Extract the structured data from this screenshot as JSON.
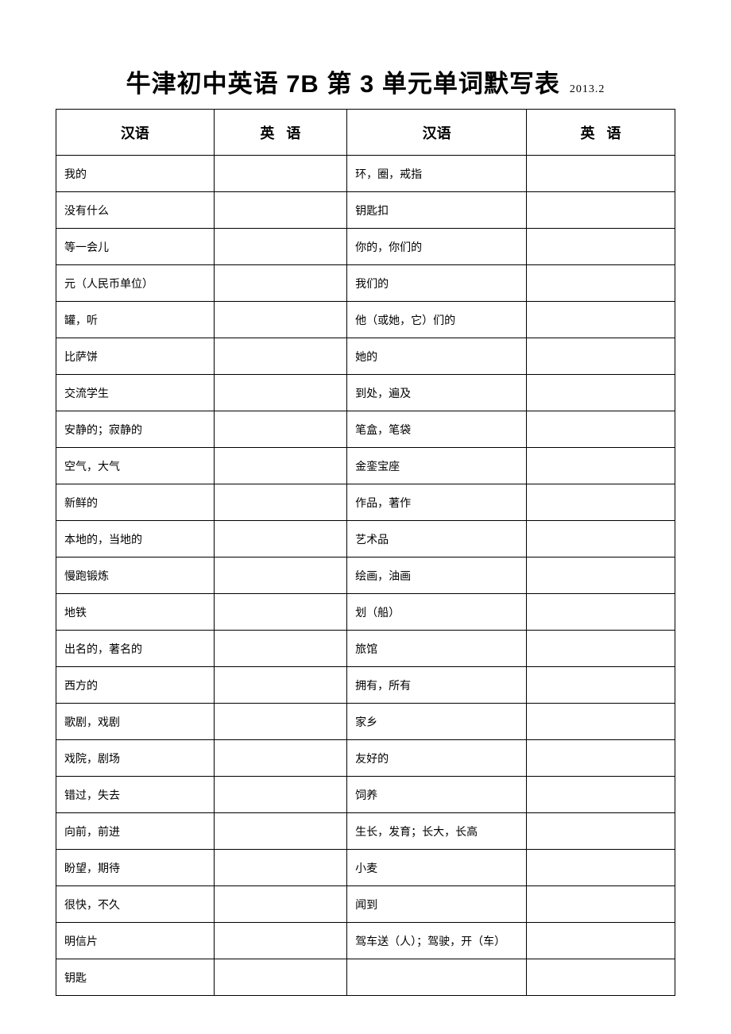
{
  "title": {
    "main": "牛津初中英语 7B 第 3 单元单词默写表",
    "date": "2013.2"
  },
  "headers": {
    "col1": "汉语",
    "col2": "英",
    "col2b": "语",
    "col3": "汉语",
    "col4": "英",
    "col4b": "语"
  },
  "rows": [
    {
      "l": "我的",
      "r": "环，圈，戒指"
    },
    {
      "l": "没有什么",
      "r": "钥匙扣"
    },
    {
      "l": "等一会儿",
      "r": "你的，你们的"
    },
    {
      "l": "元（人民币单位）",
      "r": "我们的"
    },
    {
      "l": "罐，听",
      "r": "他（或她，它）们的"
    },
    {
      "l": "比萨饼",
      "r": "她的"
    },
    {
      "l": "交流学生",
      "r": "到处，遍及"
    },
    {
      "l": "安静的；寂静的",
      "r": "笔盒，笔袋"
    },
    {
      "l": "空气，大气",
      "r": "金銮宝座"
    },
    {
      "l": "新鲜的",
      "r": "作品，著作"
    },
    {
      "l": "本地的，当地的",
      "r": "艺术品"
    },
    {
      "l": "慢跑锻炼",
      "r": "绘画，油画"
    },
    {
      "l": "地铁",
      "r": "划（船）"
    },
    {
      "l": "出名的，著名的",
      "r": "旅馆"
    },
    {
      "l": "西方的",
      "r": "拥有，所有"
    },
    {
      "l": "歌剧，戏剧",
      "r": "家乡"
    },
    {
      "l": "戏院，剧场",
      "r": "友好的"
    },
    {
      "l": "错过，失去",
      "r": "饲养"
    },
    {
      "l": "向前，前进",
      "r": "生长，发育；长大，长高"
    },
    {
      "l": "盼望，期待",
      "r": "小麦"
    },
    {
      "l": "很快，不久",
      "r": "闻到"
    },
    {
      "l": "明信片",
      "r": "驾车送（人）；驾驶，开（车）"
    },
    {
      "l": "钥匙",
      "r": ""
    }
  ]
}
